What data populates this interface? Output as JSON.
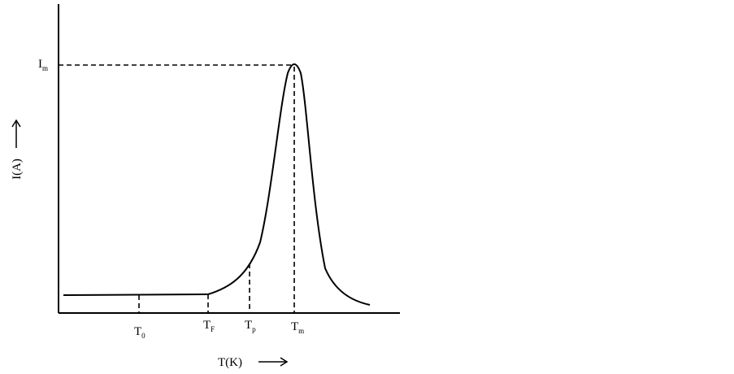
{
  "axes": {
    "y_label": "I(A)",
    "x_label": "T(K)"
  },
  "peak": {
    "main": "I",
    "sub": "m"
  },
  "markers": [
    {
      "main": "T",
      "sub": "0"
    },
    {
      "main": "T",
      "sub": "F"
    },
    {
      "main": "T",
      "sub": "p"
    },
    {
      "main": "T",
      "sub": "m"
    }
  ]
}
